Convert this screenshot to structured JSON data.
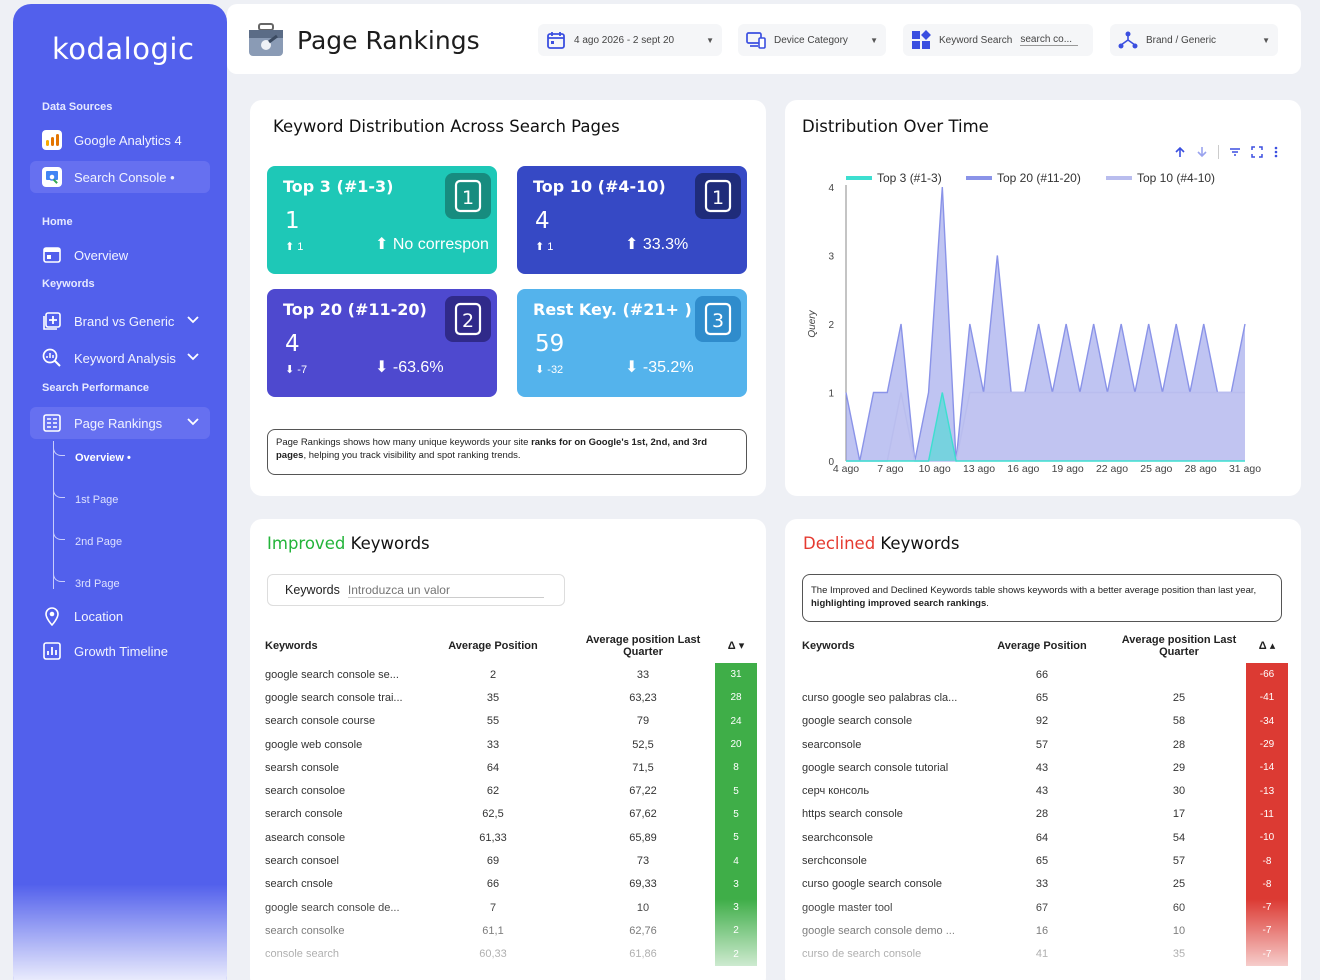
{
  "sidebar": {
    "brand": "kodalogic",
    "sections": {
      "data_sources": "Data Sources",
      "home": "Home",
      "keywords": "Keywords",
      "search_performance": "Search Performance"
    },
    "items": {
      "google_analytics": "Google Analytics 4",
      "search_console": "Search Console •",
      "overview": "Overview",
      "brand_vs_generic": "Brand vs Generic",
      "keyword_analysis": "Keyword Analysis",
      "page_rankings": "Page Rankings",
      "location": "Location",
      "growth_timeline": "Growth Timeline"
    },
    "sub_items": {
      "overview": "Overview •",
      "first_page": "1st Page",
      "second_page": "2nd Page",
      "third_page": "3rd Page"
    }
  },
  "header": {
    "title": "Page Rankings",
    "date_range": "4 ago 2026 - 2 sept 20",
    "device_category": "Device Category",
    "keyword_search_label": "Keyword Search",
    "keyword_search_value": "search co...",
    "brand_generic": "Brand / Generic"
  },
  "distribution": {
    "title": "Keyword Distribution Across Search Pages",
    "kpis": [
      {
        "title": "Top 3 (#1-3)",
        "value": "1",
        "delta": "1",
        "pct": "No correspon",
        "icon": "1",
        "color": "#1ec8b7"
      },
      {
        "title": "Top 10 (#4-10)",
        "value": "4",
        "delta": "1",
        "pct": "33.3%",
        "icon": "1",
        "color": "#3649c5"
      },
      {
        "title": "Top 20 (#11-20)",
        "value": "4",
        "delta": "-7",
        "pct": "-63.6%",
        "icon": "2",
        "color": "#4e49cf"
      },
      {
        "title": "Rest Key. (#21+ )",
        "value": "59",
        "delta": "-32",
        "pct": "-35.2%",
        "icon": "3",
        "color": "#54b3ec"
      }
    ],
    "note_prefix": "Page Rankings shows how many unique keywords your site ",
    "note_bold1": "ranks for on Google's 1st, 2nd, and 3rd pages",
    "note_suffix": ", helping you track visibility and spot ranking trends."
  },
  "chart_data": {
    "type": "area",
    "title": "Distribution Over Time",
    "ylabel": "Query",
    "ylim": [
      0,
      4
    ],
    "yticks": [
      "0",
      "1",
      "2",
      "3",
      "4"
    ],
    "xticks": [
      "4 ago",
      "7 ago",
      "10 ago",
      "13 ago",
      "16 ago",
      "19 ago",
      "22 ago",
      "25 ago",
      "28 ago",
      "31 ago"
    ],
    "x": [
      0,
      1,
      2,
      3,
      4,
      5,
      6,
      7,
      8,
      9,
      10,
      11,
      12,
      13,
      14,
      15,
      16,
      17,
      18,
      19,
      20,
      21,
      22,
      23,
      24,
      25,
      26,
      27,
      28,
      29
    ],
    "legend_position": "top",
    "series": [
      {
        "name": "Top 3 (#1-3)",
        "color": "#3ddfd0",
        "values": [
          0,
          0,
          0,
          0,
          0,
          0,
          0,
          1,
          0,
          0,
          0,
          0,
          0,
          0,
          0,
          0,
          0,
          0,
          0,
          0,
          0,
          0,
          0,
          0,
          0,
          0,
          0,
          0,
          0,
          0
        ]
      },
      {
        "name": "Top 20 (#11-20)",
        "color": "#8a93e8",
        "values": [
          1,
          0,
          1,
          1,
          2,
          0,
          1,
          4,
          0,
          2,
          1,
          3,
          1,
          1,
          2,
          1,
          2,
          1,
          2,
          1,
          2,
          1,
          2,
          1,
          2,
          1,
          2,
          1,
          1,
          2
        ]
      },
      {
        "name": "Top 10 (#4-10)",
        "color": "#b9bdee",
        "values": [
          0,
          0,
          0,
          0,
          1,
          0,
          0,
          0,
          0,
          1,
          1,
          1,
          1,
          1,
          1,
          1,
          1,
          1,
          1,
          1,
          1,
          1,
          1,
          1,
          1,
          1,
          1,
          1,
          1,
          1
        ]
      }
    ]
  },
  "improved": {
    "title_colored": "Improved",
    "title_rest": " Keywords",
    "search_label": "Keywords",
    "search_placeholder": "Introduzca un valor",
    "headers": [
      "Keywords",
      "Average Position",
      "Average position Last Quarter",
      "Δ ▾"
    ],
    "rows": [
      [
        "google search console se...",
        "2",
        "33",
        "31"
      ],
      [
        "google search console trai...",
        "35",
        "63,23",
        "28"
      ],
      [
        "search console course",
        "55",
        "79",
        "24"
      ],
      [
        "google web console",
        "33",
        "52,5",
        "20"
      ],
      [
        "searsh console",
        "64",
        "71,5",
        "8"
      ],
      [
        "search consoloe",
        "62",
        "67,22",
        "5"
      ],
      [
        "serarch console",
        "62,5",
        "67,62",
        "5"
      ],
      [
        "asearch console",
        "61,33",
        "65,89",
        "5"
      ],
      [
        "search consoel",
        "69",
        "73",
        "4"
      ],
      [
        "search cnsole",
        "66",
        "69,33",
        "3"
      ],
      [
        "google search console de...",
        "7",
        "10",
        "3"
      ],
      [
        "search consolke",
        "61,1",
        "62,76",
        "2"
      ],
      [
        "console search",
        "60,33",
        "61,86",
        "2"
      ]
    ]
  },
  "declined": {
    "title_colored": "Declined",
    "title_rest": " Keywords",
    "note_prefix": "The Improved and Declined Keywords table shows keywords with a better average position than last year, ",
    "note_bold": "highlighting improved search rankings",
    "note_suffix": ".",
    "headers": [
      "Keywords",
      "Average Position",
      "Average position Last Quarter",
      "Δ ▴"
    ],
    "rows": [
      [
        "",
        "66",
        "",
        "-66"
      ],
      [
        "curso google seo palabras cla...",
        "65",
        "25",
        "-41"
      ],
      [
        "google search console",
        "92",
        "58",
        "-34"
      ],
      [
        "searconsole",
        "57",
        "28",
        "-29"
      ],
      [
        "google search console tutorial",
        "43",
        "29",
        "-14"
      ],
      [
        "серч консоль",
        "43",
        "30",
        "-13"
      ],
      [
        "https search console",
        "28",
        "17",
        "-11"
      ],
      [
        "searchconsole",
        "64",
        "54",
        "-10"
      ],
      [
        "serchconsole",
        "65",
        "57",
        "-8"
      ],
      [
        "curso google search console",
        "33",
        "25",
        "-8"
      ],
      [
        "google master tool",
        "67",
        "60",
        "-7"
      ],
      [
        "google search console demo ...",
        "16",
        "10",
        "-7"
      ],
      [
        "curso de search console",
        "41",
        "35",
        "-7"
      ]
    ]
  }
}
